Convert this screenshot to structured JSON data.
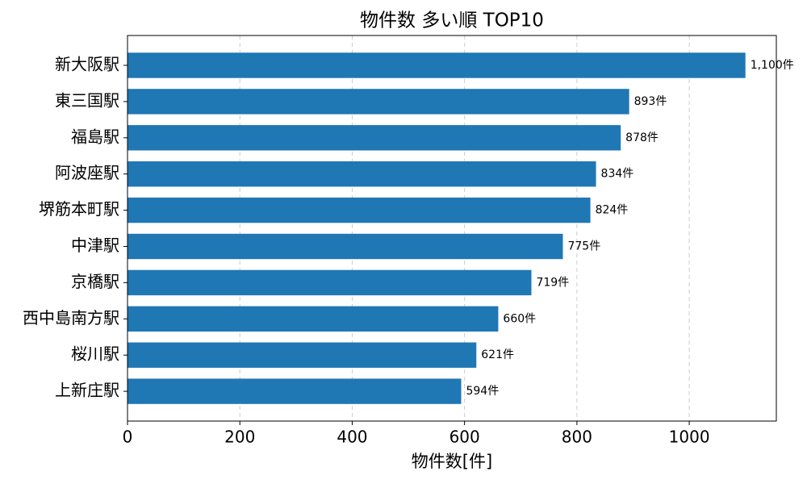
{
  "chart_data": {
    "type": "barh",
    "title": "物件数 多い順 TOP10",
    "x_label": "物件数[件]",
    "categories": [
      "新大阪駅",
      "東三国駅",
      "福島駅",
      "阿波座駅",
      "堺筋本町駅",
      "中津駅",
      "京橋駅",
      "西中島南方駅",
      "桜川駅",
      "上新庄駅"
    ],
    "values": [
      1100,
      893,
      878,
      834,
      824,
      775,
      719,
      660,
      621,
      594
    ],
    "value_labels": [
      "1,100件",
      "893件",
      "878件",
      "834件",
      "824件",
      "775件",
      "719件",
      "660件",
      "621件",
      "594件"
    ],
    "color": "#1f77b4",
    "xlim": [
      0,
      1155
    ],
    "xticks": [
      0,
      200,
      400,
      600,
      800,
      1000
    ],
    "grid": true
  }
}
